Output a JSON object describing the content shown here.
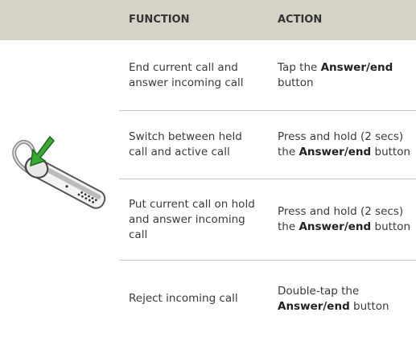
{
  "table": {
    "header": [
      "FUNCTION",
      "ACTION"
    ],
    "rows": [
      {
        "function": "End current call and answer incoming call",
        "action": [
          "Tap the ",
          "Answer/end",
          " button"
        ]
      },
      {
        "function": "Switch between held call and active call",
        "action": [
          "Press and hold (2 secs) the ",
          "Answer/end",
          " button"
        ]
      },
      {
        "function": "Put current call on hold and answer incoming call",
        "action": [
          "Press and hold (2 secs) the ",
          "Answer/end",
          " button"
        ]
      },
      {
        "function": "Reject incoming call",
        "action": [
          "Double-tap the ",
          "Answer/end",
          " button"
        ]
      }
    ]
  }
}
